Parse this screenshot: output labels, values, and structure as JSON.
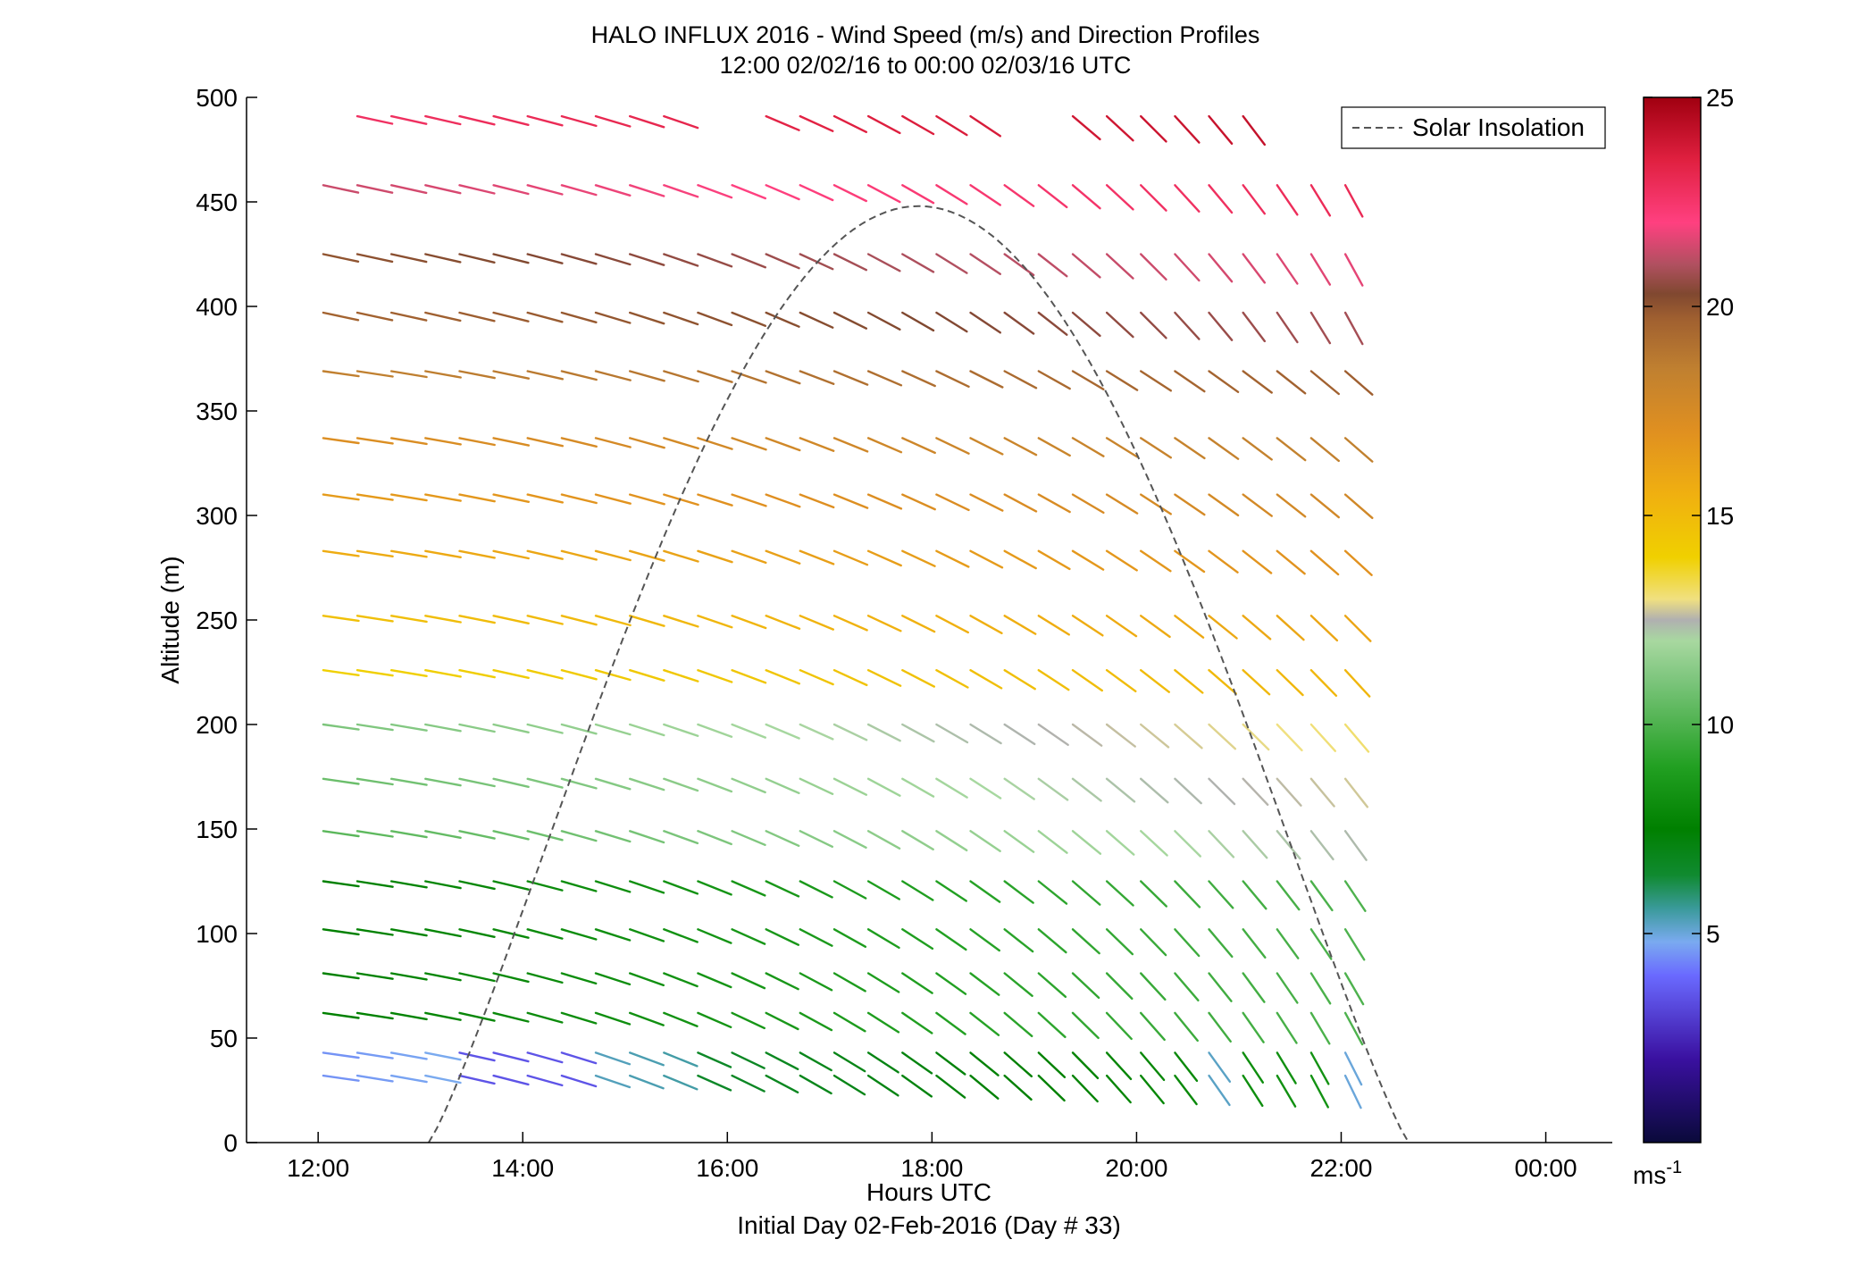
{
  "chart_data": {
    "type": "wind-barb-profile",
    "title": "HALO INFLUX 2016 - Wind Speed (m/s) and Direction Profiles",
    "subtitle": "12:00 02/02/16 to 00:00 02/03/16  UTC",
    "xlabel": "Hours UTC",
    "xlabel2": "Initial Day 02-Feb-2016 (Day # 33)",
    "ylabel": "Altitude (m)",
    "xlim": [
      11.3,
      24.65
    ],
    "ylim": [
      0,
      500
    ],
    "x_ticks": [
      12,
      14,
      16,
      18,
      20,
      22,
      24
    ],
    "x_tick_labels": [
      "12:00",
      "14:00",
      "16:00",
      "18:00",
      "20:00",
      "22:00",
      "00:00"
    ],
    "y_ticks": [
      0,
      50,
      100,
      150,
      200,
      250,
      300,
      350,
      400,
      450,
      500
    ],
    "y_tick_labels": [
      "0",
      "50",
      "100",
      "150",
      "200",
      "250",
      "300",
      "350",
      "400",
      "450",
      "500"
    ],
    "colorbar": {
      "range": [
        0,
        25
      ],
      "ticks": [
        5,
        10,
        15,
        20,
        25
      ],
      "tick_labels": [
        "5",
        "10",
        "15",
        "20",
        "25"
      ],
      "unit_base": "ms",
      "unit_exp": "-1"
    },
    "legend": {
      "label": "Solar Insolation",
      "position": "top-right"
    },
    "solar_insolation": {
      "rise_hour": 13.08,
      "set_hour": 22.66,
      "peak_hour": 17.87,
      "peak_altitude": 448
    },
    "wind_grid": {
      "time_start": 12.05,
      "time_step": 0.333,
      "altitudes": [
        32,
        43,
        62,
        81,
        102,
        125,
        149,
        174,
        200,
        226,
        252,
        283,
        310,
        337,
        369,
        397,
        425,
        458,
        491
      ],
      "time_count": [
        31,
        31,
        31,
        31,
        31,
        31,
        31,
        31,
        31,
        31,
        31,
        31,
        31,
        31,
        31,
        31,
        31,
        31,
        31
      ],
      "missing": {
        "491": [
          0,
          28,
          29,
          30,
          11,
          12,
          20,
          21
        ]
      }
    },
    "wind_speed_color_stops": [
      [
        0,
        "#0a0a3a"
      ],
      [
        2,
        "#3a10a0"
      ],
      [
        4,
        "#6a6aff"
      ],
      [
        4.8,
        "#7aaaf0"
      ],
      [
        5.6,
        "#3a9a9a"
      ],
      [
        6.4,
        "#108a30"
      ],
      [
        7.5,
        "#008000"
      ],
      [
        9,
        "#22a022"
      ],
      [
        11,
        "#7ac47a"
      ],
      [
        12,
        "#a8d8a0"
      ],
      [
        12.5,
        "#b0b0b0"
      ],
      [
        13,
        "#f0e080"
      ],
      [
        14,
        "#f0d000"
      ],
      [
        15.5,
        "#f0b010"
      ],
      [
        17,
        "#e09020"
      ],
      [
        18.5,
        "#c08030"
      ],
      [
        19.7,
        "#a06030"
      ],
      [
        20.3,
        "#804830"
      ],
      [
        21,
        "#b05060"
      ],
      [
        22,
        "#ff4080"
      ],
      [
        23.5,
        "#e02040"
      ],
      [
        25,
        "#a00010"
      ]
    ]
  }
}
